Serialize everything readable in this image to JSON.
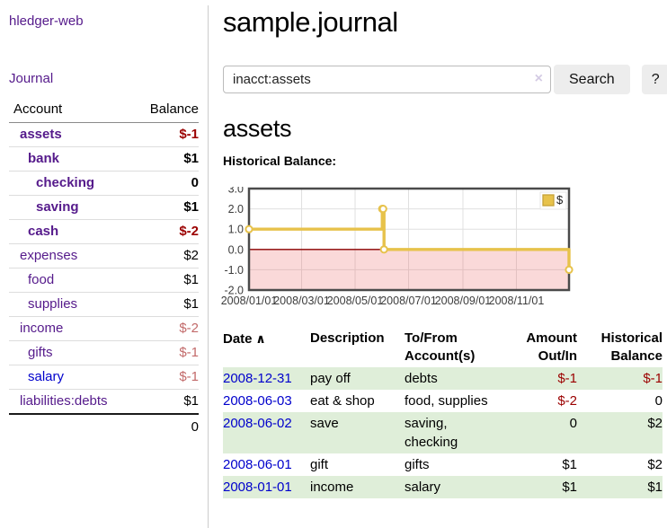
{
  "colors": {
    "link_visited": "#551a8b",
    "link_unvisited": "#0000cc",
    "negative": "#9b0000",
    "negative_dim": "#c26a6a",
    "row_shade_green": "#dfeed9",
    "chart_line_gold": "#e7c24b",
    "chart_point_fill": "#ffffff",
    "negative_region_pink": "#f9d8d8",
    "zero_line_red": "#8b0000",
    "plot_border": "#4a4a4a",
    "grid_line": "#e0e0e0",
    "tick_label": "#3c3c3c",
    "button_bg": "#ededed"
  },
  "sidebar": {
    "app_title": "hledger-web",
    "nav_journal": "Journal",
    "accounts_table": {
      "header_account": "Account",
      "header_balance": "Balance",
      "rows": [
        {
          "name": "assets",
          "indent": 0,
          "balance": "$-1",
          "bold": true,
          "balance_style": "neg",
          "link_style": "visited"
        },
        {
          "name": "bank",
          "indent": 1,
          "balance": "$1",
          "bold": true,
          "balance_style": "pos",
          "link_style": "visited"
        },
        {
          "name": "checking",
          "indent": 2,
          "balance": "0",
          "bold": true,
          "balance_style": "pos",
          "link_style": "visited"
        },
        {
          "name": "saving",
          "indent": 2,
          "balance": "$1",
          "bold": true,
          "balance_style": "pos",
          "link_style": "visited"
        },
        {
          "name": "cash",
          "indent": 1,
          "balance": "$-2",
          "bold": true,
          "balance_style": "neg",
          "link_style": "visited"
        },
        {
          "name": "expenses",
          "indent": 0,
          "balance": "$2",
          "bold": false,
          "balance_style": "pos",
          "link_style": "visited"
        },
        {
          "name": "food",
          "indent": 1,
          "balance": "$1",
          "bold": false,
          "balance_style": "pos",
          "link_style": "visited"
        },
        {
          "name": "supplies",
          "indent": 1,
          "balance": "$1",
          "bold": false,
          "balance_style": "pos",
          "link_style": "visited"
        },
        {
          "name": "income",
          "indent": 0,
          "balance": "$-2",
          "bold": false,
          "balance_style": "neg-dim",
          "link_style": "visited"
        },
        {
          "name": "gifts",
          "indent": 1,
          "balance": "$-1",
          "bold": false,
          "balance_style": "neg-dim",
          "link_style": "visited"
        },
        {
          "name": "salary",
          "indent": 1,
          "balance": "$-1",
          "bold": false,
          "balance_style": "neg-dim",
          "link_style": "unvisited"
        },
        {
          "name": "liabilities:debts",
          "indent": 0,
          "balance": "$1",
          "bold": false,
          "balance_style": "pos",
          "link_style": "visited"
        }
      ],
      "total": "0"
    }
  },
  "main": {
    "page_title": "sample.journal",
    "search": {
      "value": "inacct:assets",
      "clear_icon": "×",
      "button_label": "Search",
      "help_label": "?"
    },
    "section_title": "assets",
    "chart_label": "Historical Balance:"
  },
  "chart_data": {
    "type": "line",
    "style": "steps",
    "title": "Historical Balance",
    "series": [
      {
        "name": "$",
        "points": [
          [
            "2008-01-01",
            1
          ],
          [
            "2008-06-01",
            2
          ],
          [
            "2008-06-02",
            2
          ],
          [
            "2008-06-03",
            0
          ],
          [
            "2008-12-31",
            -1
          ]
        ]
      }
    ],
    "ylim": [
      -2,
      3
    ],
    "ytick_labels": [
      "3.0",
      "2.0",
      "1.0",
      "0.0",
      "-1.0",
      "-2.0"
    ],
    "yticks": [
      3,
      2,
      1,
      0,
      -1,
      -2
    ],
    "xlim": [
      "2008-01-01",
      "2008-12-31"
    ],
    "xticks": [
      "2008-01-01",
      "2008-03-01",
      "2008-05-01",
      "2008-07-01",
      "2008-09-01",
      "2008-11-01"
    ],
    "xtick_labels": [
      "2008/01/01",
      "2008/03/01",
      "2008/05/01",
      "2008/07/01",
      "2008/09/01",
      "2008/11/01"
    ],
    "legend": {
      "label": "$",
      "position": "top-right"
    },
    "grid": true,
    "negative_region_shaded": true,
    "zero_line": true
  },
  "register_table": {
    "headers": [
      {
        "lines": [
          "Date"
        ],
        "align": "left",
        "sort_indicator": "∧"
      },
      {
        "lines": [
          "Description"
        ],
        "align": "left"
      },
      {
        "lines": [
          "To/From",
          "Account(s)"
        ],
        "align": "left"
      },
      {
        "lines": [
          "Amount",
          "Out/In"
        ],
        "align": "right"
      },
      {
        "lines": [
          "Historical",
          "Balance"
        ],
        "align": "right"
      }
    ],
    "rows": [
      {
        "date": "2008-12-31",
        "description": "pay off",
        "accounts_lines": [
          "debts"
        ],
        "amount": "$-1",
        "amount_style": "neg",
        "balance": "$-1",
        "balance_style": "neg",
        "shaded": true
      },
      {
        "date": "2008-06-03",
        "description": "eat & shop",
        "accounts_lines": [
          "food, supplies"
        ],
        "amount": "$-2",
        "amount_style": "neg",
        "balance": "0",
        "balance_style": "pos",
        "shaded": false
      },
      {
        "date": "2008-06-02",
        "description": "save",
        "accounts_lines": [
          "saving,",
          "checking"
        ],
        "amount": "0",
        "amount_style": "pos",
        "balance": "$2",
        "balance_style": "pos",
        "shaded": true
      },
      {
        "date": "2008-06-01",
        "description": "gift",
        "accounts_lines": [
          "gifts"
        ],
        "amount": "$1",
        "amount_style": "pos",
        "balance": "$2",
        "balance_style": "pos",
        "shaded": false
      },
      {
        "date": "2008-01-01",
        "description": "income",
        "accounts_lines": [
          "salary"
        ],
        "amount": "$1",
        "amount_style": "pos",
        "balance": "$1",
        "balance_style": "pos",
        "shaded": true
      }
    ]
  }
}
